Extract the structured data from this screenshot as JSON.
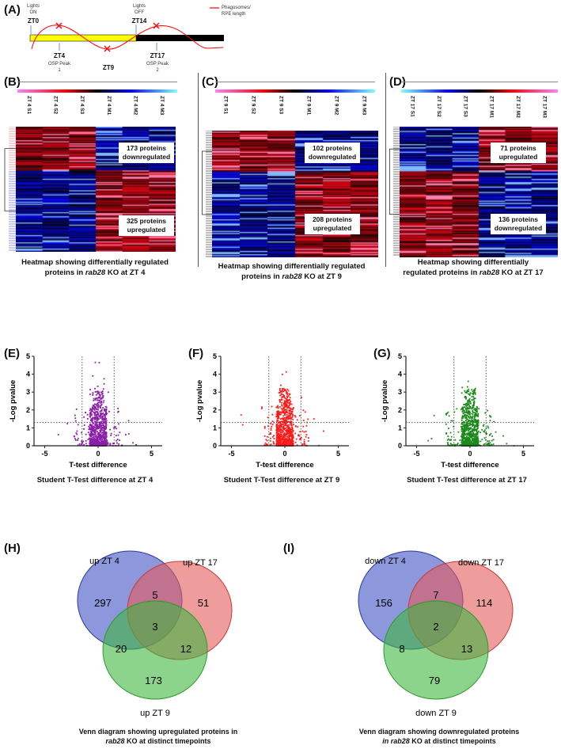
{
  "panel_a": {
    "label": "(A)",
    "lights_on": "Lights ON",
    "zt0": "ZT0",
    "lights_off": "Lights OFF",
    "zt14": "ZT14",
    "zt4": "ZT4",
    "osp1": "OSP Peak 1",
    "zt9": "ZT9",
    "zt17": "ZT17",
    "osp2": "OSP Peak 2",
    "legend": "Phagosomes/ RPE length",
    "colors": {
      "day": "#ffff00",
      "night": "#000000",
      "curve": "#ff0000"
    }
  },
  "heatmaps": [
    {
      "label": "(B)",
      "columns": [
        "ZT 4 S1",
        "ZT 4 S2",
        "ZT 4 S3",
        "ZT 4 M1",
        "ZT 4 M2",
        "ZT 4 M3"
      ],
      "box_top": "173 proteins downregulated",
      "box_bottom": "325 proteins upregulated",
      "caption_pre": "Heatmap showing differentially regulated proteins in ",
      "caption_it": "rab28",
      "caption_post": " KO at ZT 4",
      "top_count": 173,
      "bottom_count": 325,
      "top_pattern": "S-high",
      "colorbar": "pink-red-black-blue-cyan"
    },
    {
      "label": "(C)",
      "columns": [
        "ZT 9 S1",
        "ZT 9 S2",
        "ZT 9 S3",
        "ZT 9 M1",
        "ZT 9 M2",
        "ZT 9 M3"
      ],
      "box_top": "102 proteins downregulated",
      "box_bottom": "208 proteins upregulated",
      "caption_pre": "Heatmap showing differentially regulated proteins in ",
      "caption_it": "rab28",
      "caption_post": " KO at ZT 9",
      "top_count": 102,
      "bottom_count": 208,
      "top_pattern": "S-high",
      "colorbar": "pink-red-black-blue-cyan"
    },
    {
      "label": "(D)",
      "columns": [
        "ZT 17 S1",
        "ZT 17 S2",
        "ZT 17 S3",
        "ZT 17 M1",
        "ZT 17 M2",
        "ZT 17 M3"
      ],
      "box_top": "71 proteins upregulated",
      "box_bottom": "136 proteins downregulated",
      "caption_pre": "Heatmap showing differentially regulated proteins in ",
      "caption_it": "rab28",
      "caption_post": " KO at ZT 17",
      "top_count": 71,
      "bottom_count": 136,
      "top_pattern": "M-high",
      "colorbar": "cyan-blue-black-red-pink"
    }
  ],
  "chart_data": [
    {
      "type": "scatter",
      "panel": "(E)",
      "title": "Student T-Test difference at ZT 4",
      "xlabel": "T-test difference",
      "ylabel": "-Log pvalue",
      "xlim": [
        -6,
        6
      ],
      "ylim": [
        0,
        5
      ],
      "xticks": [
        "-5",
        "0",
        "5"
      ],
      "yticks": [
        "0",
        "1",
        "2",
        "3",
        "4",
        "5"
      ],
      "thresholds": {
        "x": [
          -1.5,
          1.5
        ],
        "y": 1.3
      },
      "color": "#8b1fa8",
      "n_points": 900
    },
    {
      "type": "scatter",
      "panel": "(F)",
      "title": "Student T-Test difference at ZT 9",
      "xlabel": "T-test difference",
      "ylabel": "-Log pvalue",
      "xlim": [
        -6,
        6
      ],
      "ylim": [
        0,
        5
      ],
      "xticks": [
        "-5",
        "0",
        "5"
      ],
      "yticks": [
        "0",
        "1",
        "2",
        "3",
        "4",
        "5"
      ],
      "thresholds": {
        "x": [
          -1.5,
          1.5
        ],
        "y": 1.3
      },
      "color": "#ff1a1a",
      "n_points": 900
    },
    {
      "type": "scatter",
      "panel": "(G)",
      "title": "Student T-Test difference at ZT 17",
      "xlabel": "T-test difference",
      "ylabel": "-Log pvalue",
      "xlim": [
        -6,
        6
      ],
      "ylim": [
        0,
        5
      ],
      "xticks": [
        "-5",
        "0",
        "5"
      ],
      "yticks": [
        "0",
        "1",
        "2",
        "3",
        "4",
        "5"
      ],
      "thresholds": {
        "x": [
          -1.5,
          1.5
        ],
        "y": 1.3
      },
      "color": "#1a8a1a",
      "n_points": 900
    },
    {
      "type": "venn",
      "panel": "(H)",
      "sets": [
        "up ZT 4",
        "up ZT 17",
        "up ZT 9"
      ],
      "regions": {
        "a": "297",
        "ab": "5",
        "b": "51",
        "abc": "3",
        "ac": "20",
        "bc": "12",
        "c": "173"
      },
      "caption1": "Venn diagram showing upregulated proteins in",
      "caption2_it": "rab28",
      "caption2": " KO at distinct timepoints"
    },
    {
      "type": "venn",
      "panel": "(I)",
      "sets": [
        "down ZT 4",
        "down ZT 17",
        "down ZT 9"
      ],
      "regions": {
        "a": "156",
        "ab": "7",
        "b": "114",
        "abc": "2",
        "ac": "8",
        "bc": "13",
        "c": "79"
      },
      "caption1": "Venn diagram showing downregulated proteins",
      "caption2_it": "in rab28",
      "caption2": " KO at distinct timepoints"
    }
  ]
}
